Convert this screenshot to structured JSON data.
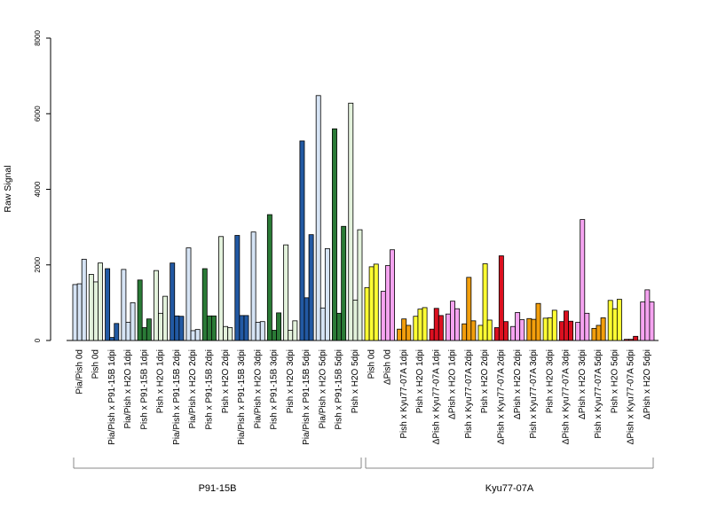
{
  "chart_data": {
    "type": "bar",
    "ylabel": "Raw Signal",
    "ylim": [
      0,
      8000
    ],
    "yticks": [
      0,
      2000,
      4000,
      6000,
      8000
    ],
    "grid": false,
    "categories": [
      "Pia/Pish 0d",
      "Pish 0d",
      "Pia/Pish x P91-15B 1dpi",
      "Pia/Pish x H2O 1dpi",
      "Pish x P91-15B 1dpi",
      "Pish x H2O 1dpi",
      "Pia/Pish x P91-15B 2dpi",
      "Pia/Pish x H2O 2dpi",
      "Pish x P91-15B 2dpi",
      "Pish x H2O 2dpi",
      "Pia/Pish x P91-15B 3dpi",
      "Pia/Pish x H2O 3dpi",
      "Pish x P91-15B 3dpi",
      "Pish x H2O 3dpi",
      "Pia/Pish x P91-15B 5dpi",
      "Pia/Pish x H2O 5dpi",
      "Pish x P91-15B 5dpi",
      "Pish x H2O 5dpi",
      "Pish 0d",
      "ΔPish 0d",
      "Pish x Kyu77-07A 1dpi",
      "Pish x H2O 1dpi",
      "ΔPish x Kyu77-07A 1dpi",
      "ΔPish x H2O 1dpi",
      "Pish x Kyu77-07A 2dpi",
      "Pish x H2O 2dpi",
      "ΔPish x Kyu77-07A 2dpi",
      "ΔPish x H2O 2dpi",
      "Pish x Kyu77-07A 3dpi",
      "Pish x H2O 3dpi",
      "ΔPish x Kyu77-07A 3dpi",
      "ΔPish x H2O 3dpi",
      "Pish x Kyu77-07A 5dpi",
      "Pish x H2O 5dpi",
      "ΔPish x Kyu77-07A 5dpi",
      "ΔPish x H2O 5dpi"
    ],
    "groups": [
      {
        "label": "P91-15B",
        "from": 0,
        "to": 17
      },
      {
        "label": "Kyu77-07A",
        "from": 18,
        "to": 35
      }
    ],
    "colors": {
      "light_blue": "#d6e4f5",
      "dark_blue": "#2259a3",
      "dark_green": "#2a7a36",
      "light_green": "#e3f2dc",
      "yellow": "#ffff33",
      "violet": "#f5a3f0",
      "orange": "#f29e0c",
      "red": "#dc1020"
    },
    "category_colors": [
      "#d6e4f5",
      "#e3f2dc",
      "#2259a3",
      "#d6e4f5",
      "#2a7a36",
      "#e3f2dc",
      "#2259a3",
      "#d6e4f5",
      "#2a7a36",
      "#e3f2dc",
      "#2259a3",
      "#d6e4f5",
      "#2a7a36",
      "#e3f2dc",
      "#2259a3",
      "#d6e4f5",
      "#2a7a36",
      "#e3f2dc",
      "#ffff33",
      "#f5a3f0",
      "#f29e0c",
      "#ffff33",
      "#dc1020",
      "#f5a3f0",
      "#f29e0c",
      "#ffff33",
      "#dc1020",
      "#f5a3f0",
      "#f29e0c",
      "#ffff33",
      "#dc1020",
      "#f5a3f0",
      "#f29e0c",
      "#ffff33",
      "#dc1020",
      "#f5a3f0"
    ],
    "values": [
      [
        1480,
        1500,
        2150
      ],
      [
        1750,
        1550,
        2050
      ],
      [
        1900,
        80,
        450
      ],
      [
        1880,
        480,
        1000
      ],
      [
        1600,
        340,
        570
      ],
      [
        1850,
        720,
        1170
      ],
      [
        2050,
        650,
        640
      ],
      [
        2450,
        260,
        290
      ],
      [
        1900,
        650,
        650
      ],
      [
        2750,
        370,
        340
      ],
      [
        2780,
        660,
        660
      ],
      [
        2870,
        480,
        500
      ],
      [
        3330,
        270,
        730
      ],
      [
        2530,
        270,
        520
      ],
      [
        5280,
        1130,
        2800
      ],
      [
        6480,
        860,
        2430
      ],
      [
        5600,
        720,
        3020
      ],
      [
        6280,
        1070,
        2930
      ],
      [
        1400,
        1950,
        2020
      ],
      [
        1300,
        1980,
        2400
      ],
      [
        300,
        570,
        400
      ],
      [
        640,
        830,
        870
      ],
      [
        300,
        850,
        660
      ],
      [
        700,
        1040,
        840
      ],
      [
        440,
        1670,
        520
      ],
      [
        400,
        2030,
        540
      ],
      [
        340,
        2240,
        500
      ],
      [
        370,
        740,
        550
      ],
      [
        580,
        560,
        980
      ],
      [
        590,
        600,
        800
      ],
      [
        500,
        780,
        510
      ],
      [
        480,
        3200,
        720
      ],
      [
        320,
        400,
        600
      ],
      [
        1060,
        840,
        1090
      ],
      [
        30,
        30,
        110
      ],
      [
        1020,
        1340,
        1020
      ]
    ]
  }
}
